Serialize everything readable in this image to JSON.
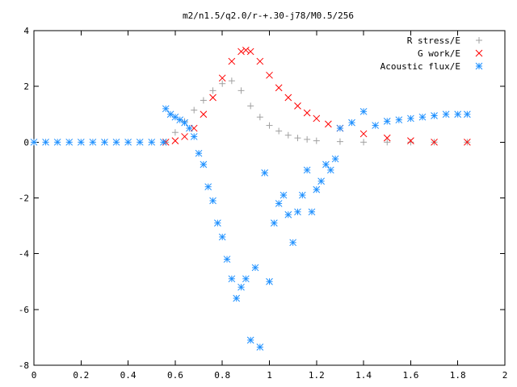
{
  "chart_data": {
    "type": "scatter",
    "title": "m2/n1.5/q2.0/r-+.30-j78/M0.5/256",
    "xlabel": "",
    "ylabel": "",
    "xlim": [
      0,
      2
    ],
    "ylim": [
      -8,
      4
    ],
    "x_ticks": [
      0,
      0.2,
      0.4,
      0.6,
      0.8,
      1,
      1.2,
      1.4,
      1.6,
      1.8,
      2
    ],
    "x_tick_labels": [
      "0",
      "0.2",
      "0.4",
      "0.6",
      "0.8",
      "1",
      "1.2",
      "1.4",
      "1.6",
      "1.8",
      "2"
    ],
    "y_ticks": [
      -8,
      -6,
      -4,
      -2,
      0,
      2,
      4
    ],
    "y_tick_labels": [
      "-8",
      "-6",
      "-4",
      "-2",
      "0",
      "2",
      "4"
    ],
    "grid": false,
    "legend_position": "top-right",
    "series": [
      {
        "name": "R stress/E",
        "marker": "plus",
        "color": "#a0a0a0",
        "x": [
          0.56,
          0.6,
          0.64,
          0.68,
          0.72,
          0.76,
          0.8,
          0.84,
          0.88,
          0.92,
          0.96,
          1.0,
          1.04,
          1.08,
          1.12,
          1.16,
          1.2,
          1.3,
          1.4,
          1.5,
          1.6,
          1.7,
          1.84
        ],
        "y": [
          0.0,
          0.35,
          0.75,
          1.15,
          1.5,
          1.85,
          2.1,
          2.2,
          1.85,
          1.3,
          0.9,
          0.6,
          0.4,
          0.25,
          0.15,
          0.1,
          0.05,
          0.02,
          0.0,
          0.0,
          0.0,
          0.0,
          0.0
        ]
      },
      {
        "name": "G work/E",
        "marker": "cross",
        "color": "#ff0000",
        "x": [
          0.56,
          0.6,
          0.64,
          0.68,
          0.72,
          0.76,
          0.8,
          0.84,
          0.88,
          0.9,
          0.92,
          0.96,
          1.0,
          1.04,
          1.08,
          1.12,
          1.16,
          1.2,
          1.25,
          1.3,
          1.4,
          1.5,
          1.6,
          1.7,
          1.84
        ],
        "y": [
          0.0,
          0.05,
          0.2,
          0.5,
          1.0,
          1.6,
          2.3,
          2.9,
          3.25,
          3.3,
          3.25,
          2.9,
          2.4,
          1.95,
          1.6,
          1.3,
          1.05,
          0.85,
          0.65,
          0.5,
          0.3,
          0.15,
          0.05,
          0.0,
          0.0
        ]
      },
      {
        "name": "Acoustic flux/E",
        "marker": "star",
        "color": "#1e90ff",
        "x": [
          0.0,
          0.05,
          0.1,
          0.15,
          0.2,
          0.25,
          0.3,
          0.35,
          0.4,
          0.45,
          0.5,
          0.55,
          0.56,
          0.58,
          0.6,
          0.62,
          0.64,
          0.66,
          0.68,
          0.7,
          0.72,
          0.74,
          0.76,
          0.78,
          0.8,
          0.82,
          0.84,
          0.86,
          0.88,
          0.9,
          0.92,
          0.94,
          0.96,
          0.98,
          1.0,
          1.02,
          1.04,
          1.06,
          1.08,
          1.1,
          1.12,
          1.14,
          1.16,
          1.18,
          1.2,
          1.22,
          1.24,
          1.26,
          1.28,
          1.3,
          1.35,
          1.4,
          1.45,
          1.5,
          1.55,
          1.6,
          1.65,
          1.7,
          1.75,
          1.8,
          1.84
        ],
        "y": [
          0.0,
          0.0,
          0.0,
          0.0,
          0.0,
          0.0,
          0.0,
          0.0,
          0.0,
          0.0,
          0.0,
          0.0,
          1.2,
          1.0,
          0.9,
          0.8,
          0.7,
          0.5,
          0.2,
          -0.4,
          -0.8,
          -1.6,
          -2.1,
          -2.9,
          -3.4,
          -4.2,
          -4.9,
          -5.6,
          -5.2,
          -4.9,
          -7.1,
          -4.5,
          -7.35,
          -1.1,
          -5.0,
          -2.9,
          -2.2,
          -1.9,
          -2.6,
          -3.6,
          -2.5,
          -1.9,
          -1.0,
          -2.5,
          -1.7,
          -1.4,
          -0.8,
          -1.0,
          -0.6,
          0.5,
          0.7,
          1.1,
          0.6,
          0.75,
          0.8,
          0.85,
          0.9,
          0.95,
          1.0,
          1.0,
          1.0
        ]
      }
    ]
  }
}
